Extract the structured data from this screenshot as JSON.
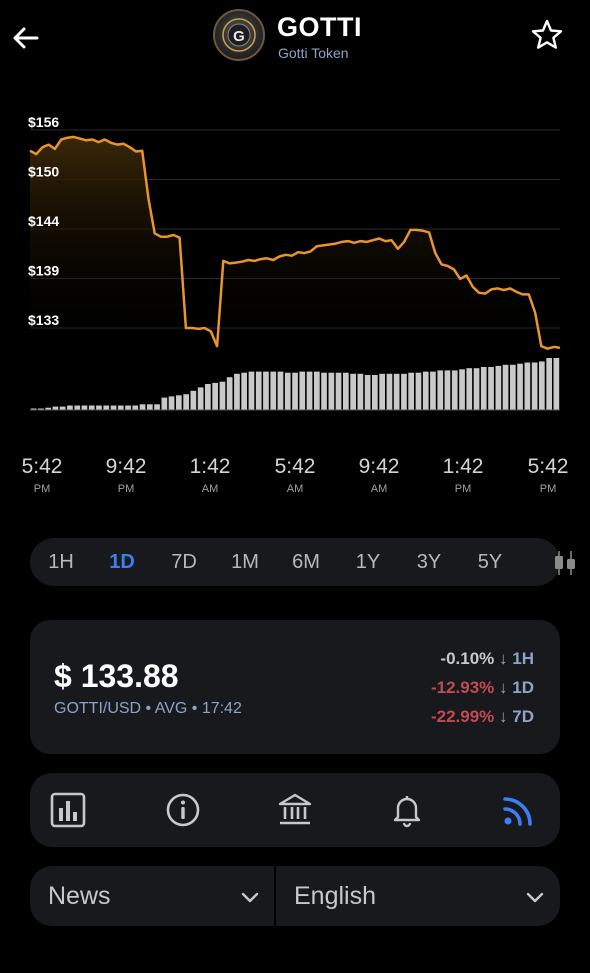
{
  "header": {
    "title": "GOTTI",
    "subtitle": "Gotti Token",
    "logo_letter": "G",
    "back_icon": "arrow-left-icon",
    "favorite_icon": "star-outline-icon"
  },
  "chart_data": {
    "type": "line",
    "y_ticks": [
      "$156",
      "$150",
      "$144",
      "$139",
      "$133"
    ],
    "ylim": [
      133,
      156
    ],
    "x_ticks": [
      {
        "time": "5:42",
        "ampm": "PM"
      },
      {
        "time": "9:42",
        "ampm": "PM"
      },
      {
        "time": "1:42",
        "ampm": "AM"
      },
      {
        "time": "5:42",
        "ampm": "AM"
      },
      {
        "time": "9:42",
        "ampm": "AM"
      },
      {
        "time": "1:42",
        "ampm": "PM"
      },
      {
        "time": "5:42",
        "ampm": "PM"
      }
    ],
    "price_series": [
      153.6,
      153.2,
      154.0,
      154.3,
      153.8,
      154.9,
      155.1,
      155.2,
      155.0,
      154.8,
      154.9,
      154.6,
      154.9,
      154.5,
      154.3,
      154.4,
      154.0,
      153.5,
      153.6,
      148.0,
      144.0,
      143.6,
      143.6,
      143.8,
      143.5,
      133.0,
      133.0,
      132.9,
      133.0,
      132.6,
      130.9,
      140.8,
      140.5,
      140.6,
      140.7,
      140.9,
      140.8,
      141.0,
      141.1,
      140.9,
      141.3,
      141.5,
      141.4,
      141.8,
      141.7,
      141.9,
      142.5,
      142.6,
      142.7,
      142.8,
      143.0,
      143.1,
      142.9,
      143.1,
      143.0,
      143.2,
      143.4,
      143.1,
      143.2,
      142.2,
      143.0,
      144.4,
      144.4,
      144.3,
      144.1,
      141.7,
      140.4,
      140.2,
      139.8,
      138.7,
      139.1,
      137.8,
      137.1,
      137.0,
      137.5,
      137.6,
      137.4,
      137.6,
      137.2,
      136.9,
      136.9,
      134.8,
      130.9,
      130.6,
      130.8,
      130.7
    ],
    "volume_series": [
      1,
      1,
      2,
      3,
      3,
      4,
      4,
      4,
      4,
      4,
      4,
      4,
      4,
      4,
      4,
      5,
      5,
      5,
      11,
      12,
      13,
      14,
      17,
      20,
      23,
      24,
      25,
      29,
      32,
      33,
      34,
      34,
      34,
      34,
      34,
      33,
      33,
      34,
      34,
      34,
      33,
      33,
      33,
      33,
      32,
      32,
      31,
      31,
      32,
      32,
      32,
      32,
      33,
      33,
      34,
      34,
      35,
      35,
      35,
      36,
      37,
      37,
      38,
      38,
      39,
      40,
      40,
      41,
      42,
      42,
      43,
      46,
      46
    ],
    "colors": {
      "line": "#e9942c",
      "fill_top": "#3a2708",
      "grid": "#2a2a2a",
      "volume": "#c9c9c9"
    }
  },
  "ranges": {
    "items": [
      "1H",
      "1D",
      "7D",
      "1M",
      "6M",
      "1Y",
      "3Y",
      "5Y"
    ],
    "active": "1D",
    "candle_icon": "candlestick-icon",
    "active_color": "#3d7ef5"
  },
  "price_card": {
    "price": "$ 133.88",
    "pair": "GOTTI/USD • AVG • 17:42",
    "changes": [
      {
        "value": "-0.10%",
        "arrow": "↓",
        "period": "1H",
        "tone": "neutral"
      },
      {
        "value": "-12.93%",
        "arrow": "↓",
        "period": "1D",
        "tone": "neg"
      },
      {
        "value": "-22.99%",
        "arrow": "↓",
        "period": "7D",
        "tone": "neg"
      }
    ]
  },
  "tabs": [
    {
      "icon": "bar-chart-icon",
      "active": false
    },
    {
      "icon": "info-icon",
      "active": false
    },
    {
      "icon": "bank-icon",
      "active": false
    },
    {
      "icon": "bell-icon",
      "active": false
    },
    {
      "icon": "rss-feed-icon",
      "active": true
    }
  ],
  "selects": {
    "section": "News",
    "language": "English"
  }
}
